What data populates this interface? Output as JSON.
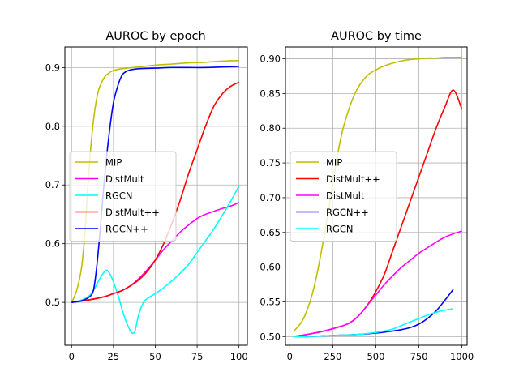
{
  "chart_data": [
    {
      "type": "line",
      "title": "AUROC by epoch",
      "xlabel": "",
      "ylabel": "",
      "xlim": [
        -4,
        105
      ],
      "ylim": [
        0.427,
        0.935
      ],
      "xticks": [
        0,
        25,
        50,
        75,
        100
      ],
      "yticks": [
        0.5,
        0.6,
        0.7,
        0.8,
        0.9
      ],
      "xtick_labels": [
        "0",
        "25",
        "50",
        "75",
        "100"
      ],
      "ytick_labels": [
        "0.5",
        "0.6",
        "0.7",
        "0.8",
        "0.9"
      ],
      "grid": true,
      "legend_position": "center-left",
      "series": [
        {
          "name": "MIP",
          "color": "#bfbf00",
          "x": [
            0,
            3,
            6,
            8,
            10,
            12,
            14,
            16,
            18,
            20,
            22,
            25,
            30,
            40,
            50,
            60,
            70,
            80,
            90,
            100
          ],
          "y": [
            0.5,
            0.52,
            0.56,
            0.62,
            0.71,
            0.78,
            0.83,
            0.86,
            0.875,
            0.885,
            0.89,
            0.895,
            0.898,
            0.901,
            0.904,
            0.906,
            0.908,
            0.909,
            0.911,
            0.912
          ]
        },
        {
          "name": "DistMult",
          "color": "#ff00ff",
          "x": [
            0,
            10,
            20,
            25,
            30,
            35,
            40,
            45,
            50,
            55,
            60,
            65,
            70,
            75,
            80,
            85,
            90,
            95,
            100
          ],
          "y": [
            0.5,
            0.504,
            0.51,
            0.515,
            0.52,
            0.528,
            0.54,
            0.555,
            0.572,
            0.59,
            0.605,
            0.62,
            0.632,
            0.643,
            0.65,
            0.655,
            0.66,
            0.664,
            0.67
          ]
        },
        {
          "name": "RGCN",
          "color": "#00ffff",
          "x": [
            0,
            5,
            10,
            13,
            16,
            19,
            21,
            23,
            25,
            28,
            31,
            34,
            36,
            37,
            38,
            40,
            43,
            46,
            50,
            55,
            60,
            65,
            70,
            75,
            80,
            85,
            90,
            95,
            100
          ],
          "y": [
            0.5,
            0.503,
            0.51,
            0.52,
            0.536,
            0.55,
            0.555,
            0.548,
            0.535,
            0.51,
            0.48,
            0.458,
            0.448,
            0.448,
            0.452,
            0.478,
            0.5,
            0.508,
            0.515,
            0.525,
            0.537,
            0.55,
            0.565,
            0.585,
            0.605,
            0.625,
            0.648,
            0.672,
            0.698
          ]
        },
        {
          "name": "DistMult++",
          "color": "#ff0000",
          "x": [
            0,
            10,
            20,
            25,
            30,
            35,
            40,
            45,
            50,
            55,
            60,
            65,
            70,
            75,
            80,
            85,
            90,
            95,
            100
          ],
          "y": [
            0.5,
            0.504,
            0.51,
            0.515,
            0.52,
            0.528,
            0.538,
            0.552,
            0.572,
            0.6,
            0.635,
            0.675,
            0.72,
            0.76,
            0.8,
            0.834,
            0.855,
            0.868,
            0.875
          ]
        },
        {
          "name": "RGCN++",
          "color": "#0000ff",
          "x": [
            0,
            5,
            10,
            13,
            15,
            17,
            19,
            21,
            23,
            25,
            27,
            29,
            31,
            34,
            37,
            40,
            50,
            60,
            70,
            80,
            90,
            100
          ],
          "y": [
            0.5,
            0.502,
            0.508,
            0.52,
            0.56,
            0.62,
            0.69,
            0.75,
            0.8,
            0.84,
            0.863,
            0.88,
            0.89,
            0.895,
            0.897,
            0.898,
            0.899,
            0.9,
            0.9,
            0.9,
            0.901,
            0.902
          ]
        }
      ]
    },
    {
      "type": "line",
      "title": "AUROC by time",
      "xlabel": "",
      "ylabel": "",
      "xlim": [
        -25,
        1030
      ],
      "ylim": [
        0.4875,
        0.917
      ],
      "xticks": [
        0,
        250,
        500,
        750,
        1000
      ],
      "yticks": [
        0.5,
        0.55,
        0.6,
        0.65,
        0.7,
        0.75,
        0.8,
        0.85,
        0.9
      ],
      "xtick_labels": [
        "0",
        "250",
        "500",
        "750",
        "1000"
      ],
      "ytick_labels": [
        "0.50",
        "0.55",
        "0.60",
        "0.65",
        "0.70",
        "0.75",
        "0.80",
        "0.85",
        "0.90"
      ],
      "grid": true,
      "legend_position": "center-left",
      "series": [
        {
          "name": "MIP",
          "color": "#bfbf00",
          "x": [
            20,
            40,
            60,
            80,
            100,
            120,
            140,
            160,
            180,
            200,
            220,
            250,
            280,
            310,
            340,
            370,
            400,
            430,
            460,
            500,
            550,
            600,
            650,
            700,
            750,
            800,
            850,
            900,
            950,
            1000
          ],
          "y": [
            0.507,
            0.512,
            0.518,
            0.526,
            0.538,
            0.552,
            0.57,
            0.592,
            0.618,
            0.645,
            0.675,
            0.72,
            0.765,
            0.8,
            0.825,
            0.845,
            0.86,
            0.87,
            0.878,
            0.884,
            0.89,
            0.894,
            0.897,
            0.899,
            0.9,
            0.901,
            0.901,
            0.902,
            0.902,
            0.902
          ]
        },
        {
          "name": "DistMult++",
          "color": "#ff0000",
          "x": [
            20,
            100,
            200,
            300,
            350,
            400,
            450,
            500,
            550,
            600,
            650,
            700,
            750,
            800,
            850,
            900,
            950,
            1000
          ],
          "y": [
            0.5,
            0.503,
            0.508,
            0.515,
            0.52,
            0.53,
            0.545,
            0.565,
            0.59,
            0.625,
            0.66,
            0.695,
            0.73,
            0.765,
            0.8,
            0.83,
            0.855,
            0.827
          ]
        },
        {
          "name": "DistMult",
          "color": "#ff00ff",
          "x": [
            20,
            100,
            200,
            300,
            350,
            400,
            450,
            500,
            550,
            600,
            650,
            700,
            750,
            800,
            850,
            900,
            950,
            1000
          ],
          "y": [
            0.5,
            0.503,
            0.508,
            0.515,
            0.52,
            0.53,
            0.545,
            0.56,
            0.575,
            0.588,
            0.6,
            0.61,
            0.62,
            0.628,
            0.636,
            0.643,
            0.648,
            0.652
          ]
        },
        {
          "name": "RGCN++",
          "color": "#0000ff",
          "x": [
            20,
            100,
            200,
            300,
            400,
            500,
            600,
            650,
            700,
            750,
            800,
            850,
            900,
            950
          ],
          "y": [
            0.5,
            0.5,
            0.501,
            0.502,
            0.503,
            0.505,
            0.508,
            0.51,
            0.513,
            0.518,
            0.526,
            0.537,
            0.552,
            0.568
          ]
        },
        {
          "name": "RGCN",
          "color": "#00ffff",
          "x": [
            20,
            100,
            200,
            300,
            400,
            500,
            550,
            600,
            650,
            700,
            750,
            800,
            850,
            900,
            950
          ],
          "y": [
            0.5,
            0.5,
            0.501,
            0.502,
            0.503,
            0.506,
            0.508,
            0.511,
            0.516,
            0.521,
            0.526,
            0.531,
            0.535,
            0.538,
            0.54
          ]
        }
      ]
    }
  ]
}
